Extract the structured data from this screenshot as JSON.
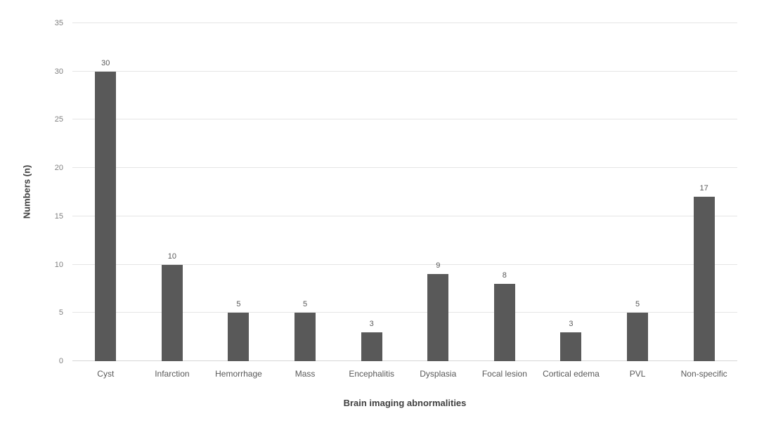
{
  "chart_data": {
    "type": "bar",
    "title": "",
    "categories": [
      "Cyst",
      "Infarction",
      "Hemorrhage",
      "Mass",
      "Encephalitis",
      "Dysplasia",
      "Focal lesion",
      "Cortical edema",
      "PVL",
      "Non-specific"
    ],
    "values": [
      30,
      10,
      5,
      5,
      3,
      9,
      8,
      3,
      5,
      17
    ],
    "xlabel": "Brain imaging abnormalities",
    "ylabel": "Numbers (n)",
    "ylim": [
      0,
      35
    ],
    "yticks": [
      0,
      5,
      10,
      15,
      20,
      25,
      30,
      35
    ],
    "grid": true,
    "legend": false,
    "data_labels": true,
    "colors": {
      "bar": "#595959",
      "gridline": "#e5e5e5",
      "baseline": "#d6d6d6",
      "tick_label": "#7f7f7f",
      "value_label": "#595959",
      "category_label": "#595959",
      "axis_title": "#404040",
      "background": "#ffffff"
    }
  }
}
